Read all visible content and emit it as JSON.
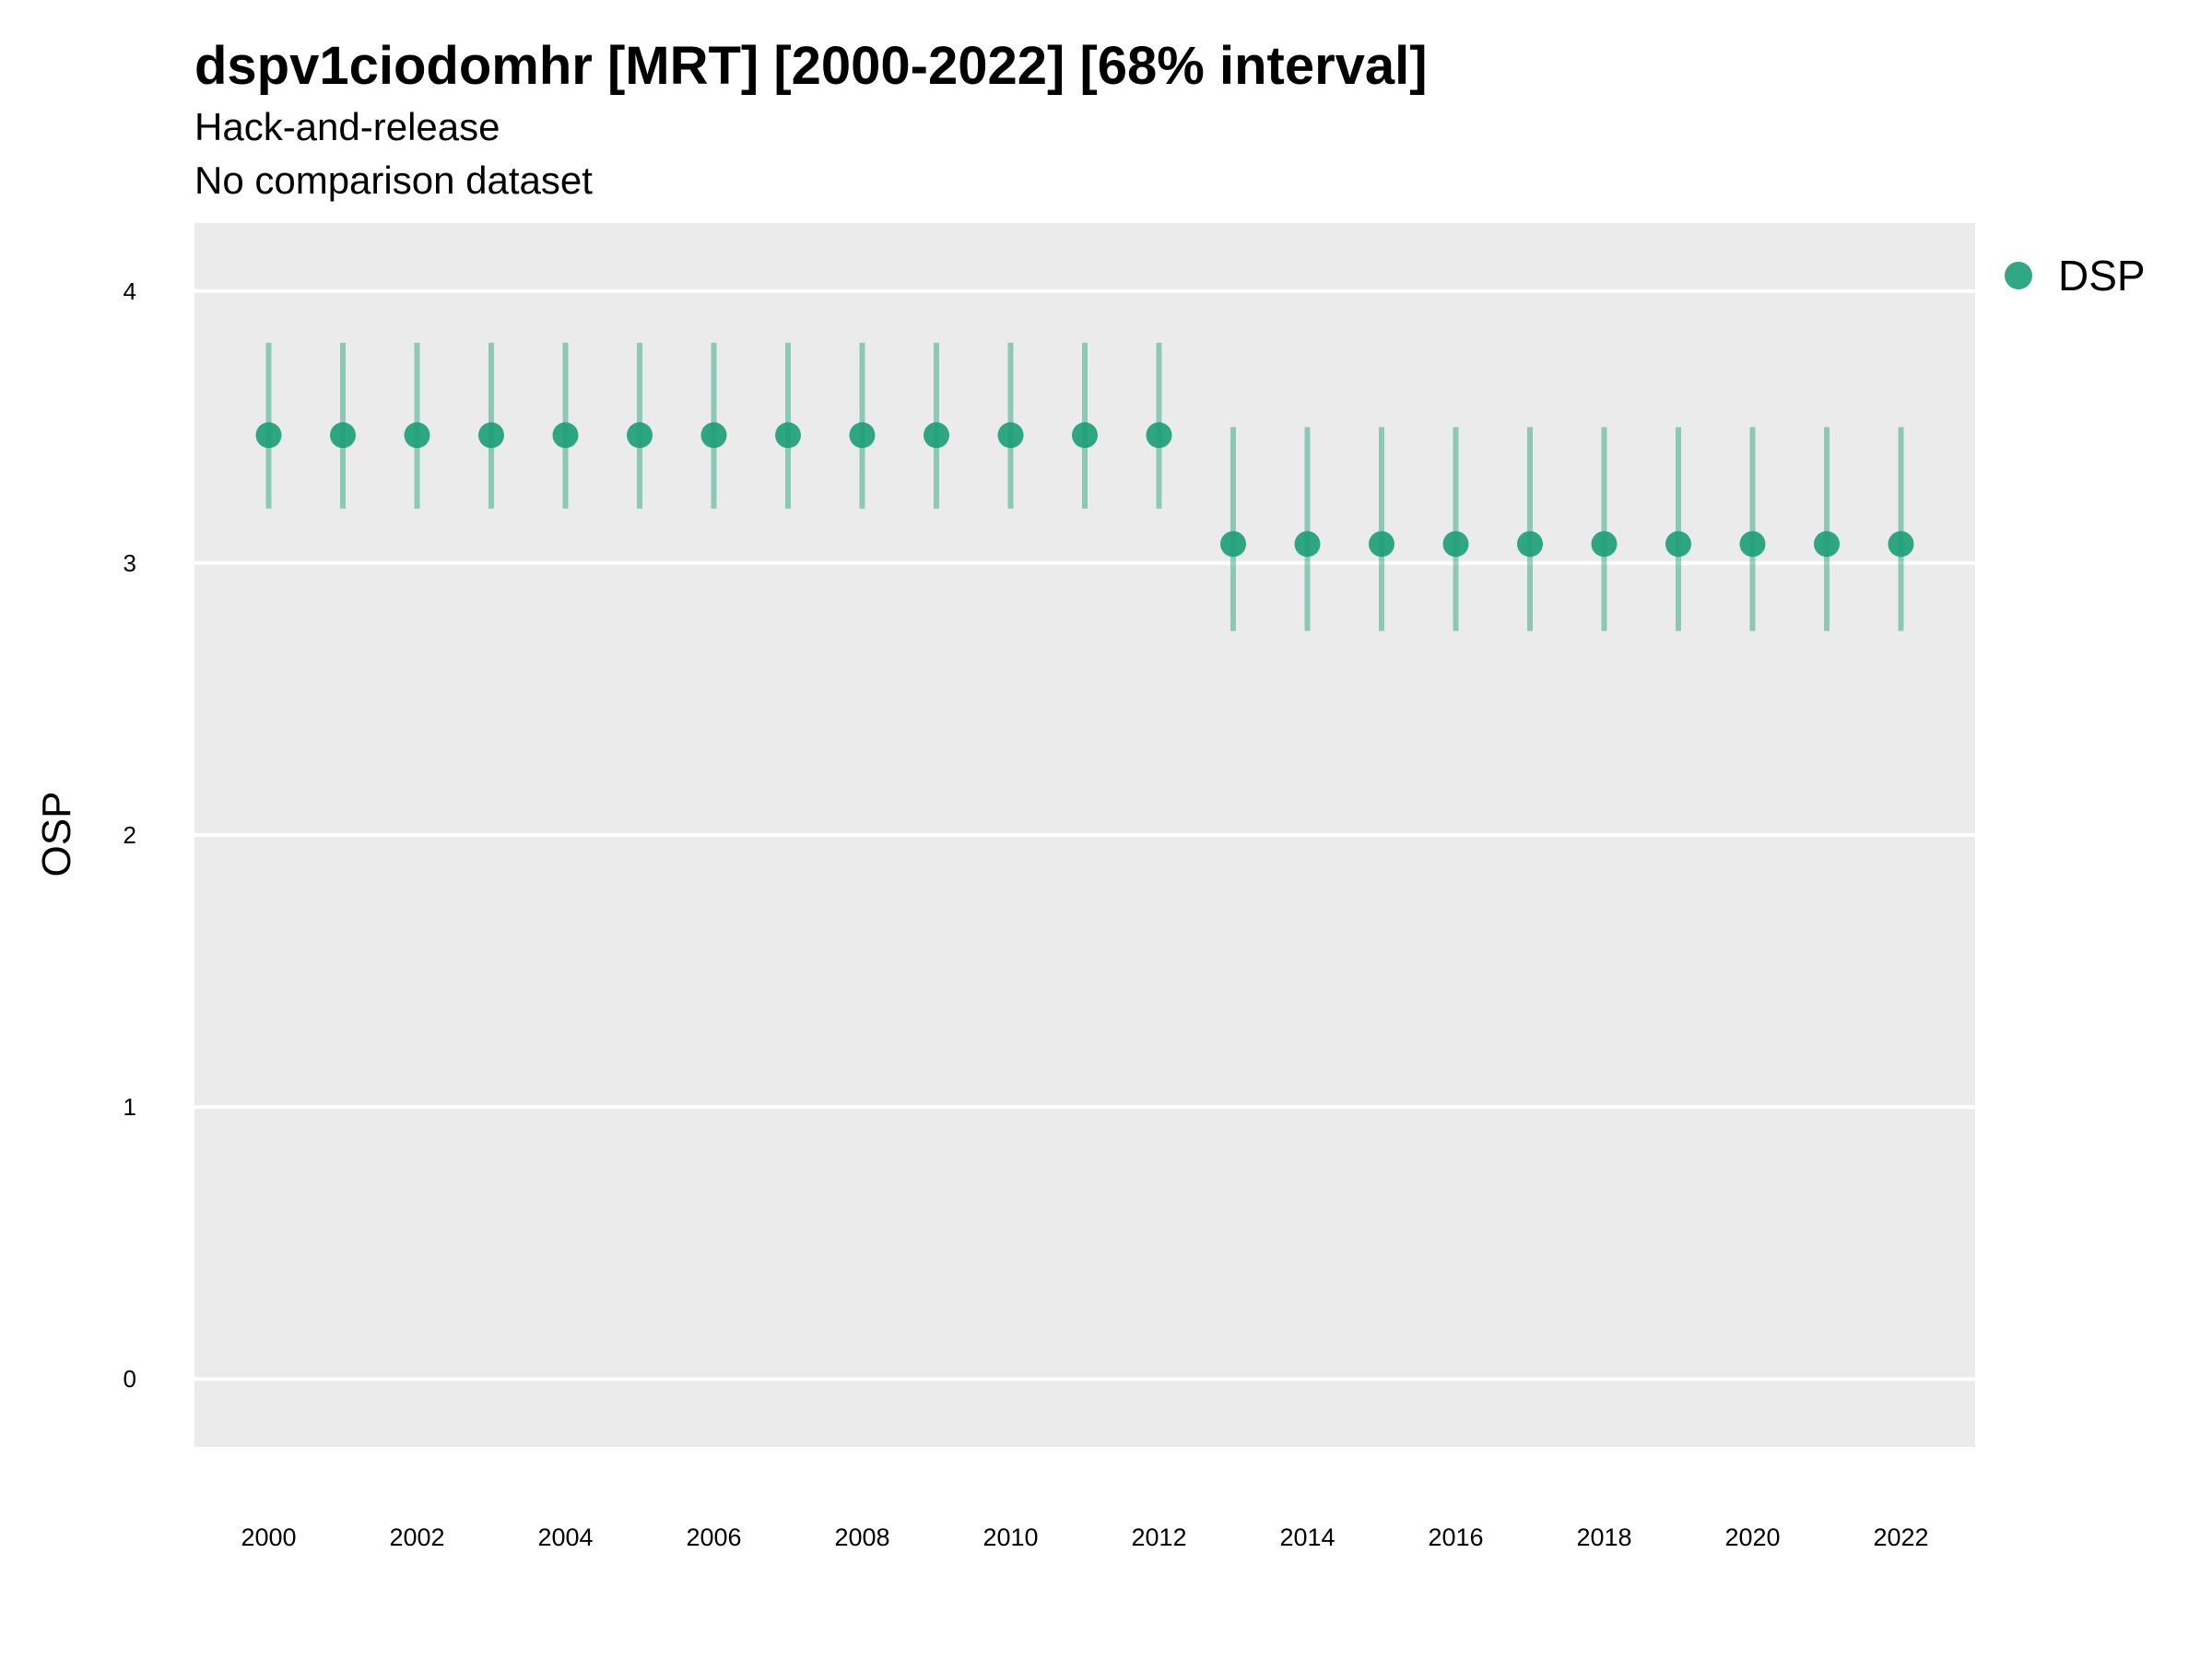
{
  "chart_data": {
    "type": "scatter",
    "title": "dspv1ciodomhr [MRT] [2000-2022] [68% interval]",
    "subtitle": "Hack-and-release",
    "caption": "No comparison dataset",
    "ylabel": "OSP",
    "xlabel": "",
    "ylim": [
      -0.25,
      4.25
    ],
    "xlim": [
      1999.0,
      2023.0
    ],
    "yticks": [
      0,
      1,
      2,
      3,
      4
    ],
    "xticks": [
      2000,
      2002,
      2004,
      2006,
      2008,
      2010,
      2012,
      2014,
      2016,
      2018,
      2020,
      2022
    ],
    "grid": true,
    "legend_position": "right",
    "point_color": "#1b9e77",
    "panel_color": "#ebebeb",
    "series": [
      {
        "name": "DSP",
        "x": [
          2000,
          2001,
          2002,
          2003,
          2004,
          2005,
          2006,
          2007,
          2008,
          2009,
          2010,
          2011,
          2012,
          2013,
          2014,
          2015,
          2016,
          2017,
          2018,
          2019,
          2020,
          2021,
          2022
        ],
        "y": [
          3.47,
          3.47,
          3.47,
          3.47,
          3.47,
          3.47,
          3.47,
          3.47,
          3.47,
          3.47,
          3.47,
          3.47,
          3.47,
          3.07,
          3.07,
          3.07,
          3.07,
          3.07,
          3.07,
          3.07,
          3.07,
          3.07,
          3.07
        ],
        "lower": [
          3.2,
          3.2,
          3.2,
          3.2,
          3.2,
          3.2,
          3.2,
          3.2,
          3.2,
          3.2,
          3.2,
          3.2,
          3.2,
          2.75,
          2.75,
          2.75,
          2.75,
          2.75,
          2.75,
          2.75,
          2.75,
          2.75,
          2.75
        ],
        "upper": [
          3.81,
          3.81,
          3.81,
          3.81,
          3.81,
          3.81,
          3.81,
          3.81,
          3.81,
          3.81,
          3.81,
          3.81,
          3.81,
          3.5,
          3.5,
          3.5,
          3.5,
          3.5,
          3.5,
          3.5,
          3.5,
          3.5,
          3.5
        ]
      }
    ]
  }
}
